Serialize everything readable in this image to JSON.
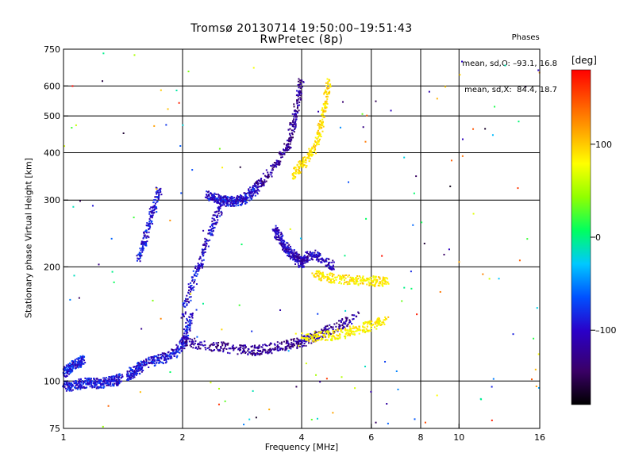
{
  "title": {
    "line1": "Tromsø 20130714 19:50:00–19:51:43",
    "line2": "RwPretec (8p)"
  },
  "phases": {
    "header": "Phases",
    "line_o": "mean, sd,O: –93.1, 16.8",
    "line_x": "mean, sd,X:  84.4, 18.7"
  },
  "axes": {
    "xlabel": "Frequency [MHz]",
    "ylabel": "Stationary phase Virtual Height [km]",
    "x_scale": "log",
    "y_scale": "log",
    "xlim": [
      1,
      16
    ],
    "ylim": [
      75,
      750
    ],
    "x_ticks": [
      "1",
      "2",
      "4",
      "6",
      "8",
      "10",
      "16"
    ],
    "x_tick_values": [
      1,
      2,
      4,
      6,
      8,
      10,
      16
    ],
    "y_ticks": [
      "750",
      "600",
      "500",
      "400",
      "300",
      "200",
      "100",
      "75"
    ],
    "y_tick_values": [
      750,
      600,
      500,
      400,
      300,
      200,
      100,
      75
    ],
    "grid_x": [
      2,
      4,
      6,
      8,
      10
    ],
    "grid_y": [
      100,
      200,
      300,
      400,
      500,
      600
    ]
  },
  "colorbar": {
    "unit": "[deg]",
    "range": [
      -180,
      180
    ],
    "ticks": [
      "100",
      "0",
      "–100"
    ],
    "tick_values": [
      100,
      0,
      -100
    ],
    "colormap": "rainbow (black-purple-blue-cyan-green-yellow-orange-red)"
  },
  "chart_data": {
    "type": "scatter",
    "title": "Tromsø 20130714 19:50:00–19:51:43",
    "subtitle": "RwPretec (8p)",
    "xlabel": "Frequency [MHz]",
    "ylabel": "Stationary phase Virtual Height [km]",
    "xlim": [
      1,
      16
    ],
    "ylim": [
      75,
      750
    ],
    "x_scale": "log",
    "y_scale": "log",
    "grid": true,
    "color_variable": "phase [deg]",
    "traces": [
      {
        "id": "sporadic-low",
        "phase": -115,
        "x": [
          1.0,
          1.05,
          1.1,
          1.15,
          1.2,
          1.25,
          1.3,
          1.35,
          1.4
        ],
        "y": [
          97,
          97,
          98,
          99,
          99,
          98,
          100,
          100,
          102
        ]
      },
      {
        "id": "low-ledge",
        "phase": -110,
        "x": [
          1.0,
          1.03,
          1.06,
          1.1,
          1.12
        ],
        "y": [
          105,
          107,
          110,
          112,
          114
        ]
      },
      {
        "id": "E-trace",
        "phase": -115,
        "x": [
          1.45,
          1.5,
          1.55,
          1.6,
          1.7,
          1.8,
          1.9,
          2.0,
          2.05,
          2.1
        ],
        "y": [
          103,
          106,
          108,
          111,
          113,
          115,
          118,
          125,
          135,
          150
        ]
      },
      {
        "id": "F1-o",
        "phase": -120,
        "x": [
          2.0,
          2.1,
          2.2,
          2.3,
          2.4,
          2.5
        ],
        "y": [
          150,
          175,
          200,
          230,
          260,
          290
        ]
      },
      {
        "id": "F2-o-bottom",
        "phase": -118,
        "x": [
          2.3,
          2.4,
          2.5,
          2.6,
          2.7,
          2.8,
          2.9,
          3.0,
          3.1
        ],
        "y": [
          310,
          305,
          300,
          297,
          298,
          300,
          305,
          315,
          325
        ]
      },
      {
        "id": "F2-o-rise",
        "phase": -135,
        "x": [
          3.1,
          3.3,
          3.5,
          3.7,
          3.8,
          3.9,
          4.0
        ],
        "y": [
          330,
          350,
          380,
          420,
          470,
          540,
          620
        ]
      },
      {
        "id": "F2-x-trace",
        "phase": 95,
        "x": [
          3.8,
          4.0,
          4.2,
          4.4,
          4.5,
          4.6,
          4.7
        ],
        "y": [
          350,
          370,
          395,
          430,
          480,
          540,
          620
        ]
      },
      {
        "id": "hump-right",
        "phase": -125,
        "x": [
          3.4,
          3.5,
          3.6,
          3.7,
          3.8,
          3.9,
          4.0,
          4.1,
          4.3,
          4.5,
          4.8
        ],
        "y": [
          250,
          240,
          230,
          220,
          215,
          210,
          205,
          212,
          215,
          210,
          200
        ]
      },
      {
        "id": "low-F-band",
        "phase": -135,
        "x": [
          2.0,
          2.2,
          2.5,
          2.8,
          3.0,
          3.2,
          3.5,
          3.8,
          4.0,
          4.3,
          4.6,
          5.0,
          5.5
        ],
        "y": [
          128,
          125,
          123,
          121,
          120,
          121,
          123,
          125,
          127,
          130,
          135,
          140,
          148
        ]
      },
      {
        "id": "x-band",
        "phase": 90,
        "x": [
          4.3,
          4.6,
          5.0,
          5.4,
          5.8,
          6.2,
          6.6
        ],
        "y": [
          190,
          188,
          186,
          185,
          184,
          183,
          182
        ]
      },
      {
        "id": "x-band-low",
        "phase": 85,
        "x": [
          4.0,
          4.4,
          4.8,
          5.2,
          5.6,
          6.0,
          6.5
        ],
        "y": [
          130,
          131,
          132,
          134,
          137,
          140,
          145
        ]
      },
      {
        "id": "sporadic-1.5",
        "phase": -115,
        "x": [
          1.55,
          1.6,
          1.65,
          1.7,
          1.75
        ],
        "y": [
          210,
          230,
          260,
          290,
          320
        ]
      }
    ]
  }
}
